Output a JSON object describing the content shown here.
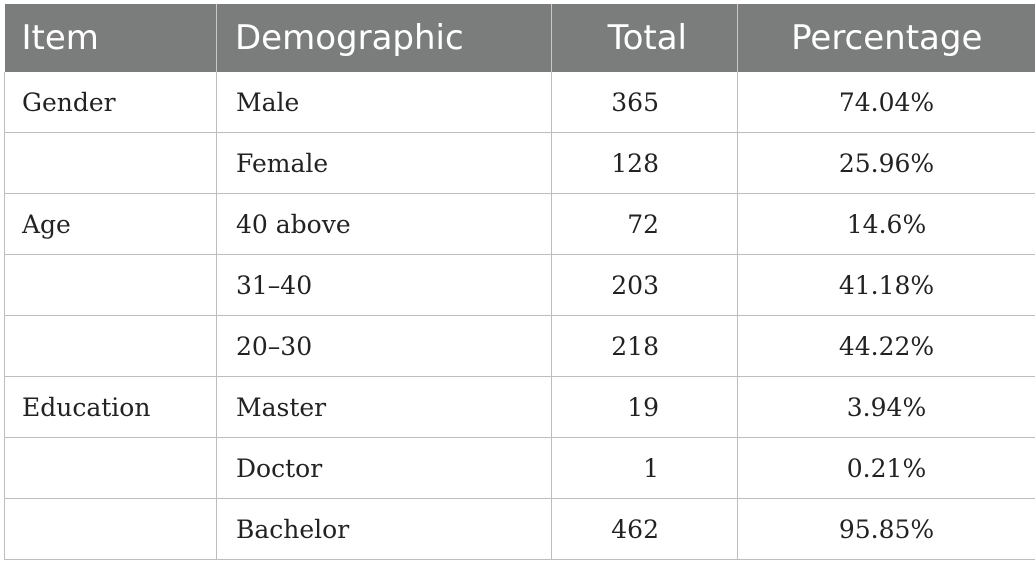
{
  "table": {
    "headers": [
      "Item",
      "Demographic",
      "Total",
      "Percentage"
    ],
    "rows": [
      {
        "item": "Gender",
        "demographic": "Male",
        "total": "365",
        "percentage": "74.04%"
      },
      {
        "item": "",
        "demographic": "Female",
        "total": "128",
        "percentage": "25.96%"
      },
      {
        "item": "Age",
        "demographic": "40 above",
        "total": "72",
        "percentage": "14.6%"
      },
      {
        "item": "",
        "demographic": "31–40",
        "total": "203",
        "percentage": "41.18%"
      },
      {
        "item": "",
        "demographic": "20–30",
        "total": "218",
        "percentage": "44.22%"
      },
      {
        "item": "Education",
        "demographic": "Master",
        "total": "19",
        "percentage": "3.94%"
      },
      {
        "item": "",
        "demographic": "Doctor",
        "total": "1",
        "percentage": "0.21%"
      },
      {
        "item": "",
        "demographic": "Bachelor",
        "total": "462",
        "percentage": "95.85%"
      }
    ]
  }
}
